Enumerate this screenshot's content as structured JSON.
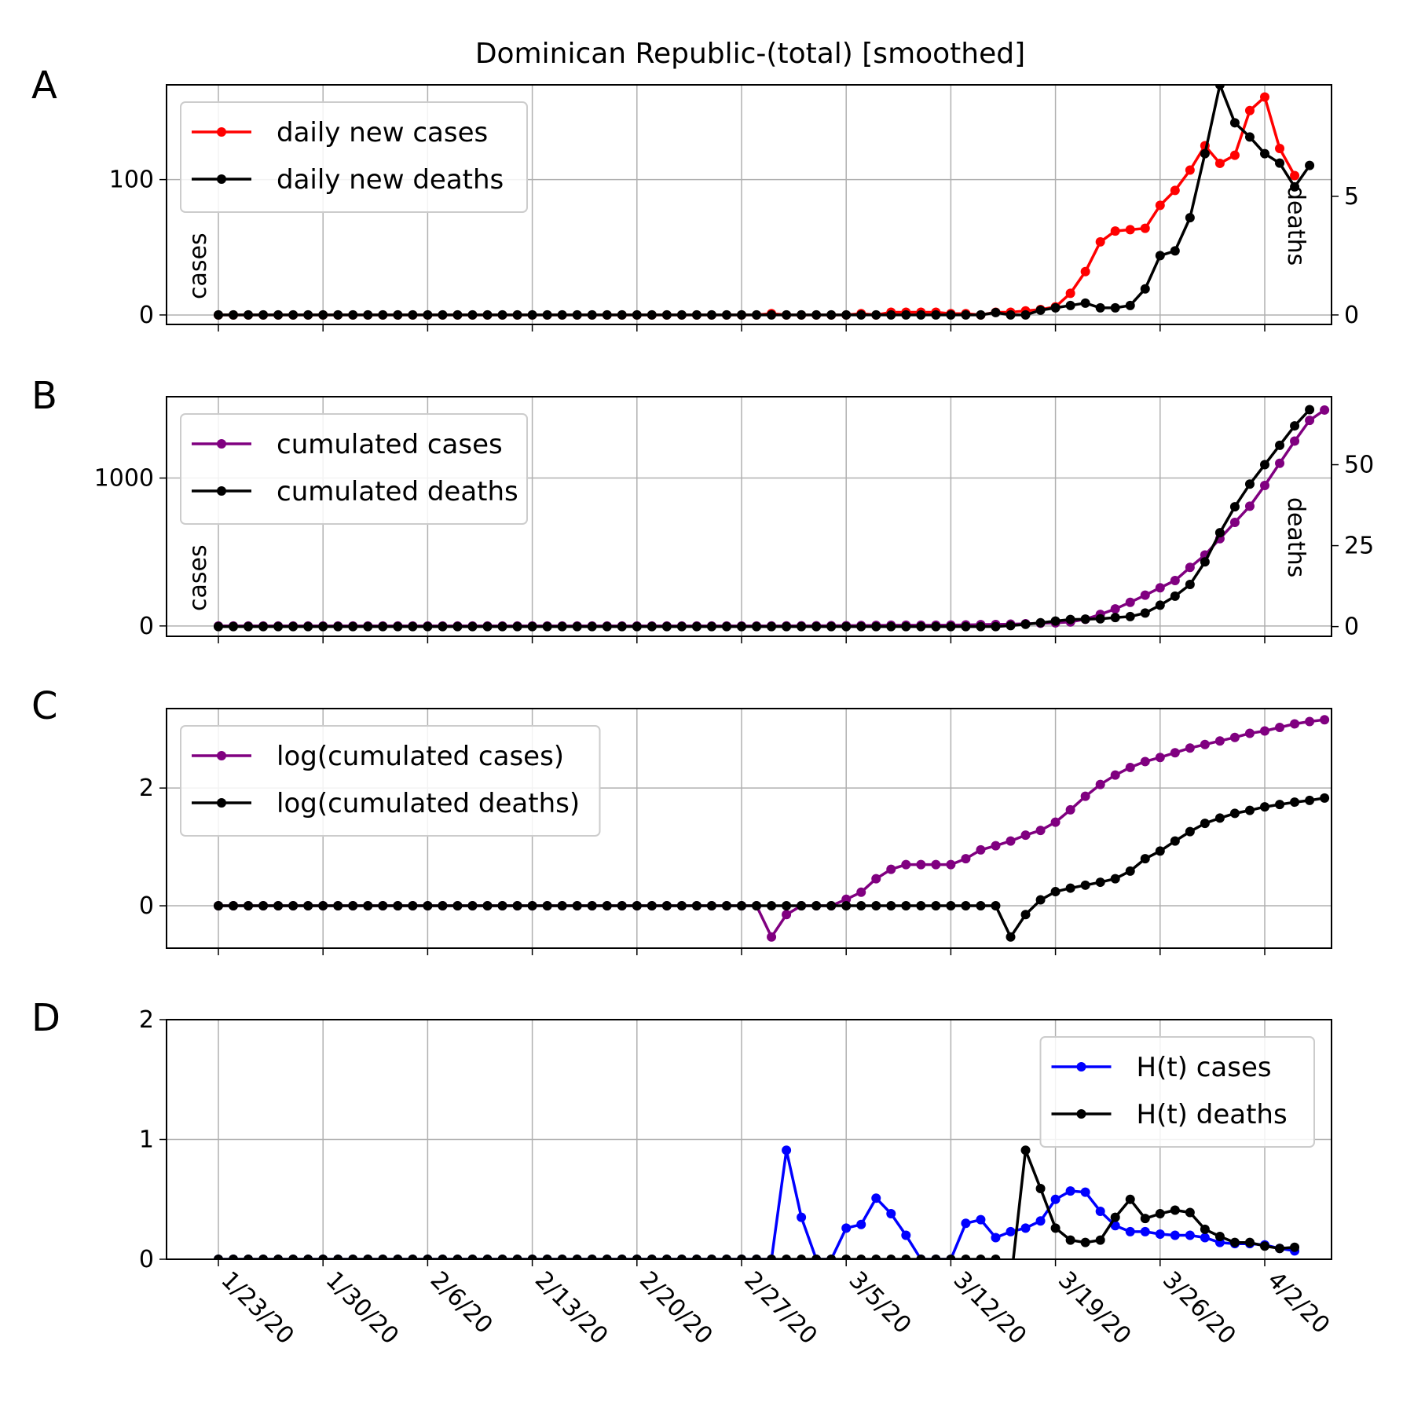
{
  "title": "Dominican Republic-(total) [smoothed]",
  "x_tick_labels": [
    "1/23/20",
    "1/30/20",
    "2/6/20",
    "2/13/20",
    "2/20/20",
    "2/27/20",
    "3/5/20",
    "3/12/20",
    "3/19/20",
    "3/26/20",
    "4/2/20"
  ],
  "colors": {
    "cases": "#ff0000",
    "deaths": "#000000",
    "cumulated": "#800080",
    "ht_cases": "#0000ff",
    "grid": "#b0b0b0"
  },
  "chart_data": [
    {
      "type": "line",
      "panel": "A",
      "ylabel_left": "cases",
      "ylabel_right": "deaths",
      "x_start": "1/23/20",
      "x_end": "4/3/20",
      "ylim_left": [
        -7,
        170
      ],
      "ylim_right": [
        -0.4,
        9.7
      ],
      "yticks_left": [
        0,
        100
      ],
      "yticks_right": [
        0,
        5
      ],
      "legend": "top-left",
      "series": [
        {
          "name": "daily new cases",
          "axis": "left",
          "color": "#ff0000",
          "values": [
            0,
            0,
            0,
            0,
            0,
            0,
            0,
            0,
            0,
            0,
            0,
            0,
            0,
            0,
            0,
            0,
            0,
            0,
            0,
            0,
            0,
            0,
            0,
            0,
            0,
            0,
            0,
            0,
            0,
            0,
            0,
            0,
            0,
            0,
            0,
            0,
            0,
            1,
            0,
            0,
            0,
            0,
            0,
            1,
            0,
            2,
            2,
            2,
            2,
            1,
            1,
            0,
            2,
            2,
            3,
            4,
            6,
            16,
            32,
            54,
            62,
            63,
            64,
            81,
            92,
            107,
            125,
            112,
            118,
            151,
            161,
            123,
            103
          ]
        },
        {
          "name": "daily new deaths",
          "axis": "right",
          "color": "#000000",
          "values": [
            0,
            0,
            0,
            0,
            0,
            0,
            0,
            0,
            0,
            0,
            0,
            0,
            0,
            0,
            0,
            0,
            0,
            0,
            0,
            0,
            0,
            0,
            0,
            0,
            0,
            0,
            0,
            0,
            0,
            0,
            0,
            0,
            0,
            0,
            0,
            0,
            0,
            0,
            0,
            0,
            0,
            0,
            0,
            0,
            0,
            0,
            0,
            0,
            0,
            0,
            0,
            0,
            0.1,
            0,
            0,
            0.2,
            0.3,
            0.4,
            0.5,
            0.3,
            0.3,
            0.4,
            1.1,
            2.5,
            2.7,
            4.1,
            6.8,
            9.7,
            8.1,
            7.5,
            6.8,
            6.4,
            5.4,
            6.3
          ]
        }
      ]
    },
    {
      "type": "line",
      "panel": "B",
      "ylabel_left": "cases",
      "ylabel_right": "deaths",
      "x_start": "1/23/20",
      "x_end": "4/3/20",
      "ylim_left": [
        -70,
        1550
      ],
      "ylim_right": [
        -3,
        71
      ],
      "yticks_left": [
        0,
        1000
      ],
      "yticks_right": [
        0,
        25,
        50
      ],
      "legend": "top-left",
      "series": [
        {
          "name": "cumulated cases",
          "axis": "left",
          "color": "#800080",
          "values": [
            0,
            0,
            0,
            0,
            0,
            0,
            0,
            0,
            0,
            0,
            0,
            0,
            0,
            0,
            0,
            0,
            0,
            0,
            0,
            0,
            0,
            0,
            0,
            0,
            0,
            0,
            0,
            0,
            0,
            0,
            0,
            0,
            0,
            0,
            0,
            0,
            0,
            0.3,
            0.7,
            1,
            1.3,
            1.6,
            2,
            3,
            4,
            5,
            5,
            5,
            5,
            6,
            7,
            9,
            10,
            12,
            15,
            18,
            21,
            27,
            45,
            78,
            115,
            160,
            208,
            258,
            307,
            396,
            480,
            590,
            700,
            810,
            950,
            1100,
            1250,
            1390,
            1460
          ]
        },
        {
          "name": "cumulated deaths",
          "axis": "right",
          "color": "#000000",
          "values": [
            0,
            0,
            0,
            0,
            0,
            0,
            0,
            0,
            0,
            0,
            0,
            0,
            0,
            0,
            0,
            0,
            0,
            0,
            0,
            0,
            0,
            0,
            0,
            0,
            0,
            0,
            0,
            0,
            0,
            0,
            0,
            0,
            0,
            0,
            0,
            0,
            0,
            0,
            0,
            0,
            0,
            0,
            0,
            0,
            0,
            0,
            0,
            0,
            0,
            0,
            0,
            0,
            0,
            0.3,
            0.7,
            1.2,
            1.7,
            2.2,
            2.3,
            2.4,
            2.8,
            3.1,
            4.2,
            6.6,
            9.4,
            13,
            20,
            29,
            37,
            44,
            50,
            56,
            62,
            67
          ]
        }
      ]
    },
    {
      "type": "line",
      "panel": "C",
      "x_start": "1/23/20",
      "x_end": "4/3/20",
      "ylim": [
        -0.72,
        3.35
      ],
      "yticks": [
        0,
        2
      ],
      "legend": "top-left",
      "series": [
        {
          "name": "log(cumulated cases)",
          "color": "#800080",
          "values": [
            0,
            0,
            0,
            0,
            0,
            0,
            0,
            0,
            0,
            0,
            0,
            0,
            0,
            0,
            0,
            0,
            0,
            0,
            0,
            0,
            0,
            0,
            0,
            0,
            0,
            0,
            0,
            0,
            0,
            0,
            0,
            0,
            0,
            0,
            0,
            0,
            0,
            -0.53,
            -0.15,
            0,
            0,
            0,
            0.11,
            0.23,
            0.46,
            0.62,
            0.7,
            0.7,
            0.7,
            0.7,
            0.8,
            0.95,
            1.02,
            1.1,
            1.2,
            1.28,
            1.42,
            1.63,
            1.86,
            2.06,
            2.22,
            2.35,
            2.45,
            2.52,
            2.6,
            2.68,
            2.74,
            2.8,
            2.86,
            2.93,
            2.97,
            3.03,
            3.09,
            3.13,
            3.16
          ]
        },
        {
          "name": "log(cumulated deaths)",
          "color": "#000000",
          "values": [
            0,
            0,
            0,
            0,
            0,
            0,
            0,
            0,
            0,
            0,
            0,
            0,
            0,
            0,
            0,
            0,
            0,
            0,
            0,
            0,
            0,
            0,
            0,
            0,
            0,
            0,
            0,
            0,
            0,
            0,
            0,
            0,
            0,
            0,
            0,
            0,
            0,
            0,
            0,
            0,
            0,
            0,
            0,
            0,
            0,
            0,
            0,
            0,
            0,
            0,
            0,
            0,
            0,
            -0.53,
            -0.15,
            0.1,
            0.24,
            0.3,
            0.35,
            0.4,
            0.46,
            0.59,
            0.8,
            0.93,
            1.1,
            1.26,
            1.4,
            1.49,
            1.57,
            1.62,
            1.68,
            1.72,
            1.76,
            1.79,
            1.83
          ]
        }
      ]
    },
    {
      "type": "line",
      "panel": "D",
      "x_start": "1/23/20",
      "x_end": "4/3/20",
      "ylim": [
        0,
        2
      ],
      "yticks": [
        0,
        1,
        2
      ],
      "legend": "top-right",
      "series": [
        {
          "name": "H(t) cases",
          "color": "#0000ff",
          "values": [
            0,
            0,
            0,
            0,
            0,
            0,
            0,
            0,
            0,
            0,
            0,
            0,
            0,
            0,
            0,
            0,
            0,
            0,
            0,
            0,
            0,
            0,
            0,
            0,
            0,
            0,
            0,
            0,
            0,
            0,
            0,
            0,
            0,
            0,
            0,
            0,
            0,
            0,
            0.91,
            0.35,
            0,
            0,
            0.26,
            0.29,
            0.51,
            0.38,
            0.2,
            0,
            0,
            0,
            0.3,
            0.33,
            0.18,
            0.23,
            0.26,
            0.32,
            0.5,
            0.57,
            0.56,
            0.4,
            0.28,
            0.23,
            0.23,
            0.21,
            0.2,
            0.2,
            0.18,
            0.14,
            0.13,
            0.13,
            0.12,
            0.09,
            0.07
          ]
        },
        {
          "name": "H(t) deaths",
          "color": "#000000",
          "values": [
            0,
            0,
            0,
            0,
            0,
            0,
            0,
            0,
            0,
            0,
            0,
            0,
            0,
            0,
            0,
            0,
            0,
            0,
            0,
            0,
            0,
            0,
            0,
            0,
            0,
            0,
            0,
            0,
            0,
            0,
            0,
            0,
            0,
            0,
            0,
            0,
            0,
            0,
            0,
            0,
            0,
            0,
            0,
            0,
            0,
            0,
            0,
            0,
            0,
            0,
            0,
            0,
            0,
            -0.2,
            0.91,
            0.59,
            0.26,
            0.16,
            0.14,
            0.16,
            0.35,
            0.5,
            0.34,
            0.38,
            0.41,
            0.39,
            0.25,
            0.19,
            0.14,
            0.14,
            0.11,
            0.09,
            0.1
          ]
        }
      ]
    }
  ]
}
